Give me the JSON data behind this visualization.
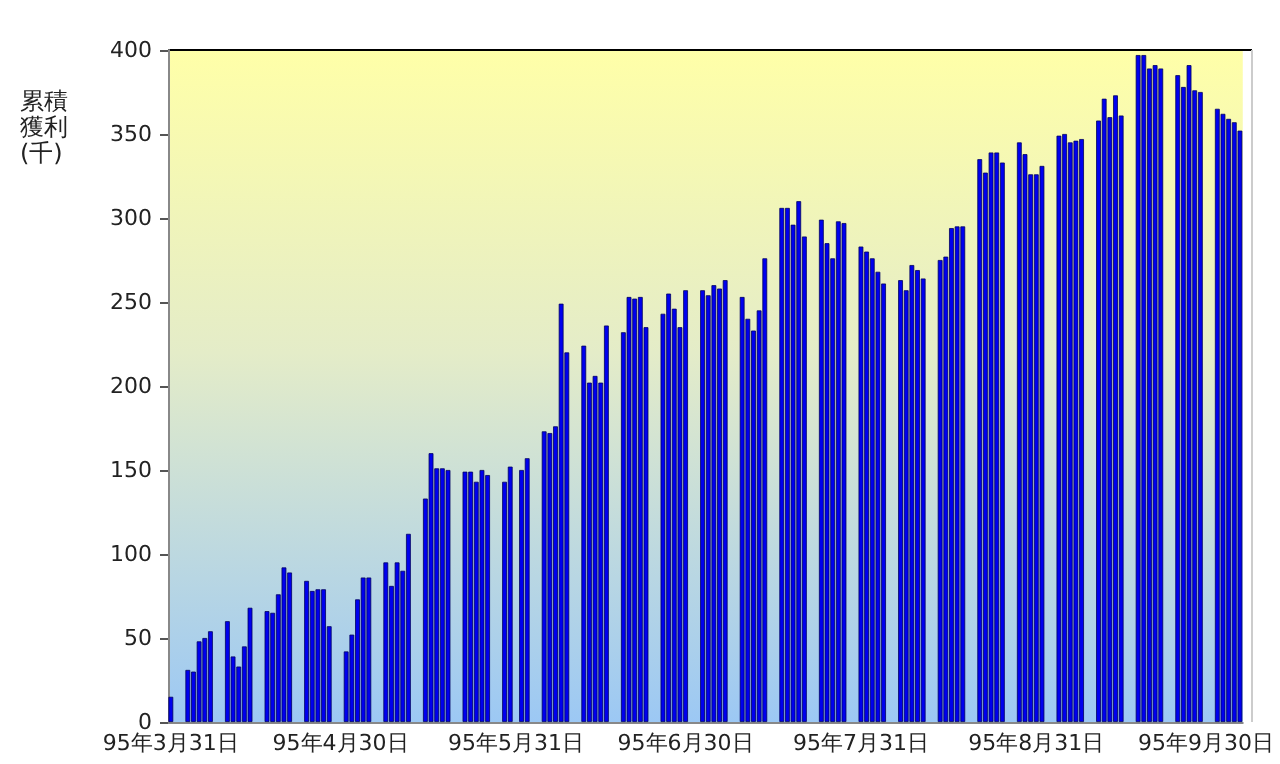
{
  "chart_data": {
    "type": "bar",
    "ylabel": "累積獲利(千)",
    "color": "#0000ee",
    "x": [
      "--03-31",
      "--04-03",
      "--04-04",
      "--04-05",
      "--04-06",
      "--04-07",
      "--04-10",
      "--04-11",
      "--04-12",
      "--04-13",
      "--04-14",
      "--04-17",
      "--04-18",
      "--04-19",
      "--04-20",
      "--04-21",
      "--04-24",
      "--04-25",
      "--04-26",
      "--04-27",
      "--04-28",
      "--05-01",
      "--05-02",
      "--05-03",
      "--05-04",
      "--05-05",
      "--05-08",
      "--05-09",
      "--05-10",
      "--05-11",
      "--05-12",
      "--05-15",
      "--05-16",
      "--05-17",
      "--05-18",
      "--05-19",
      "--05-22",
      "--05-23",
      "--05-24",
      "--05-25",
      "--05-26",
      "--05-29",
      "--05-30",
      "--05-31",
      "--06-01",
      "--06-02",
      "--06-05",
      "--06-06",
      "--06-07",
      "--06-08",
      "--06-09",
      "--06-12",
      "--06-13",
      "--06-14",
      "--06-15",
      "--06-16",
      "--06-19",
      "--06-20",
      "--06-21",
      "--06-22",
      "--06-23",
      "--06-26",
      "--06-27",
      "--06-28",
      "--06-29",
      "--06-30",
      "--07-03",
      "--07-04",
      "--07-05",
      "--07-06",
      "--07-07",
      "--07-10",
      "--07-11",
      "--07-12",
      "--07-13",
      "--07-14",
      "--07-17",
      "--07-18",
      "--07-19",
      "--07-20",
      "--07-21",
      "--07-24",
      "--07-25",
      "--07-26",
      "--07-27",
      "--07-28",
      "--07-31",
      "--08-01",
      "--08-02",
      "--08-03",
      "--08-04",
      "--08-07",
      "--08-08",
      "--08-09",
      "--08-10",
      "--08-11",
      "--08-14",
      "--08-15",
      "--08-16",
      "--08-17",
      "--08-18",
      "--08-21",
      "--08-22",
      "--08-23",
      "--08-24",
      "--08-25",
      "--08-28",
      "--08-29",
      "--08-30",
      "--08-31",
      "--09-01",
      "--09-04",
      "--09-05",
      "--09-06",
      "--09-07",
      "--09-08",
      "--09-11",
      "--09-12",
      "--09-13",
      "--09-14",
      "--09-15",
      "--09-18",
      "--09-19",
      "--09-20",
      "--09-21",
      "--09-22",
      "--09-25",
      "--09-26",
      "--09-27",
      "--09-28",
      "--09-29",
      "--10-02",
      "--10-03",
      "--10-04",
      "--10-05",
      "--10-06"
    ],
    "values": [
      15,
      31,
      30,
      48,
      50,
      54,
      60,
      39,
      33,
      45,
      68,
      66,
      65,
      76,
      92,
      89,
      84,
      78,
      79,
      79,
      57,
      42,
      52,
      73,
      86,
      86,
      95,
      81,
      95,
      90,
      112,
      133,
      160,
      151,
      151,
      150,
      149,
      149,
      143,
      150,
      147,
      143,
      152,
      null,
      150,
      157,
      173,
      172,
      176,
      249,
      220,
      224,
      202,
      206,
      202,
      236,
      232,
      253,
      252,
      253,
      235,
      243,
      255,
      246,
      235,
      257,
      257,
      254,
      260,
      258,
      263,
      253,
      240,
      233,
      245,
      276,
      306,
      306,
      296,
      310,
      289,
      299,
      285,
      276,
      298,
      297,
      283,
      280,
      276,
      268,
      261,
      263,
      257,
      272,
      269,
      264,
      275,
      277,
      294,
      295,
      295,
      335,
      327,
      339,
      339,
      333,
      345,
      338,
      326,
      326,
      331,
      349,
      350,
      345,
      346,
      347,
      358,
      371,
      360,
      373,
      361,
      397,
      397,
      389,
      391,
      389,
      385,
      378,
      391,
      376,
      375,
      365,
      362,
      359,
      357,
      352
    ],
    "xlim": [
      "--03-30T12:00",
      "--10-06T12:00"
    ],
    "xticks": [
      {
        "value": "--03-31",
        "label": "95年3月31日"
      },
      {
        "value": "--04-30",
        "label": "95年4月30日"
      },
      {
        "value": "--05-31",
        "label": "95年5月31日"
      },
      {
        "value": "--06-30",
        "label": "95年6月30日"
      },
      {
        "value": "--07-31",
        "label": "95年7月31日"
      },
      {
        "value": "--08-31",
        "label": "95年8月31日"
      },
      {
        "value": "--09-30",
        "label": "95年9月30日"
      }
    ],
    "ylim": [
      0,
      400
    ],
    "yticks": [
      0,
      50,
      100,
      150,
      200,
      250,
      300,
      350,
      400
    ]
  }
}
